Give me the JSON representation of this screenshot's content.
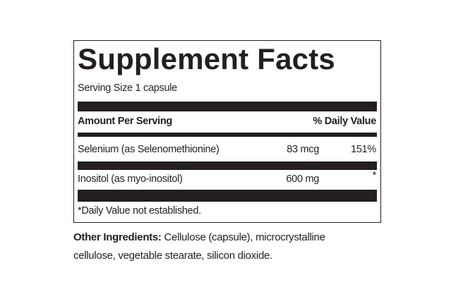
{
  "title": "Supplement Facts",
  "serving_size": "Serving Size 1 capsule",
  "header": {
    "amount": "Amount Per Serving",
    "daily_value": "% Daily Value"
  },
  "rows": [
    [
      "Selenium (as Selenomethionine)",
      "83 mcg",
      "151%"
    ],
    [
      "Inositol (as myo-inositol)",
      "600 mg",
      "*"
    ]
  ],
  "footnote": "*Daily Value not established.",
  "other_ingredients": {
    "label": "Other Ingredients:",
    "text": "Cellulose (capsule), microcrystalline cellulose, vegetable stearate, silicon dioxide."
  }
}
